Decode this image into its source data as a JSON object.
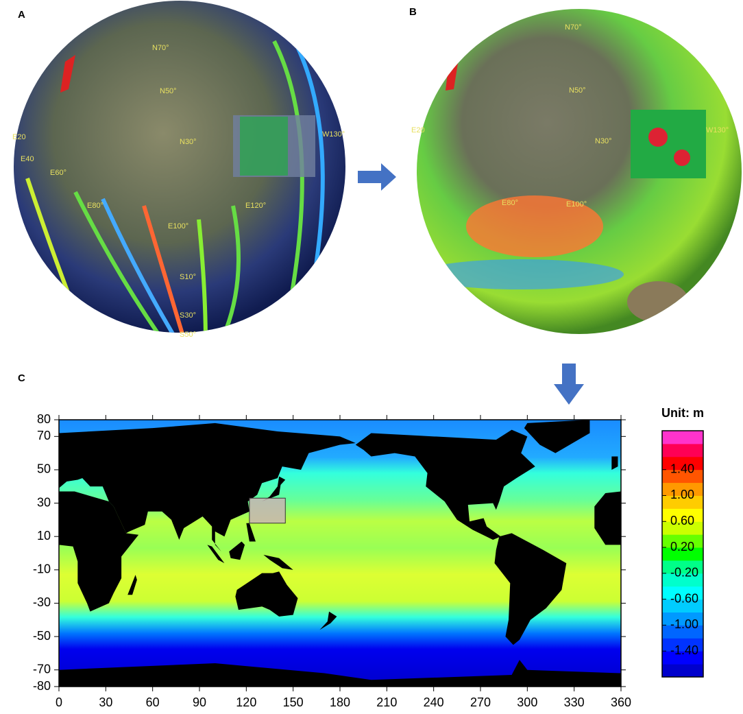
{
  "panels": [
    {
      "label": "A",
      "annotations": [
        "N70°",
        "N50°",
        "N30°",
        "E20",
        "E40",
        "E60°",
        "E80°",
        "E100°",
        "E120°",
        "W130°",
        "S10°",
        "S30°",
        "S50°"
      ]
    },
    {
      "label": "B",
      "annotations": [
        "N70°",
        "N50°",
        "N30°",
        "E20",
        "E80°",
        "E100°",
        "W130°"
      ]
    }
  ],
  "chart_data": {
    "type": "map",
    "panel_label": "C",
    "xlim": [
      0,
      360
    ],
    "xticks": [
      0,
      30,
      60,
      90,
      120,
      150,
      180,
      210,
      240,
      270,
      300,
      330,
      360
    ],
    "ylim": [
      -80,
      80
    ],
    "yticks": [
      -80,
      -70,
      -50,
      -30,
      -10,
      10,
      30,
      50,
      70,
      80
    ],
    "highlight_box": {
      "x": [
        122,
        145
      ],
      "y": [
        18,
        33
      ],
      "color": "#c8b4b4"
    },
    "land_color": "#000000",
    "colorbar": {
      "title": "Unit: m",
      "lim": [
        -1.8,
        2.0
      ],
      "ticks": [
        {
          "value": 1.4,
          "label": "1.40"
        },
        {
          "value": 1.0,
          "label": "1.00"
        },
        {
          "value": 0.6,
          "label": "0.60"
        },
        {
          "value": 0.2,
          "label": "0.20"
        },
        {
          "value": -0.2,
          "label": "-0.20"
        },
        {
          "value": -0.6,
          "label": "-0.60"
        },
        {
          "value": -1.0,
          "label": "-1.00"
        },
        {
          "value": -1.4,
          "label": "-1.40"
        }
      ],
      "colors": [
        "#0000cc",
        "#0000ff",
        "#0033ff",
        "#0066ff",
        "#0099ff",
        "#00ccff",
        "#00ffff",
        "#00ffcc",
        "#00ff88",
        "#00ff00",
        "#66ff00",
        "#ccff00",
        "#ffff00",
        "#ffcc00",
        "#ff9900",
        "#ff5500",
        "#ff0000",
        "#ff0055",
        "#ff33cc"
      ]
    }
  }
}
